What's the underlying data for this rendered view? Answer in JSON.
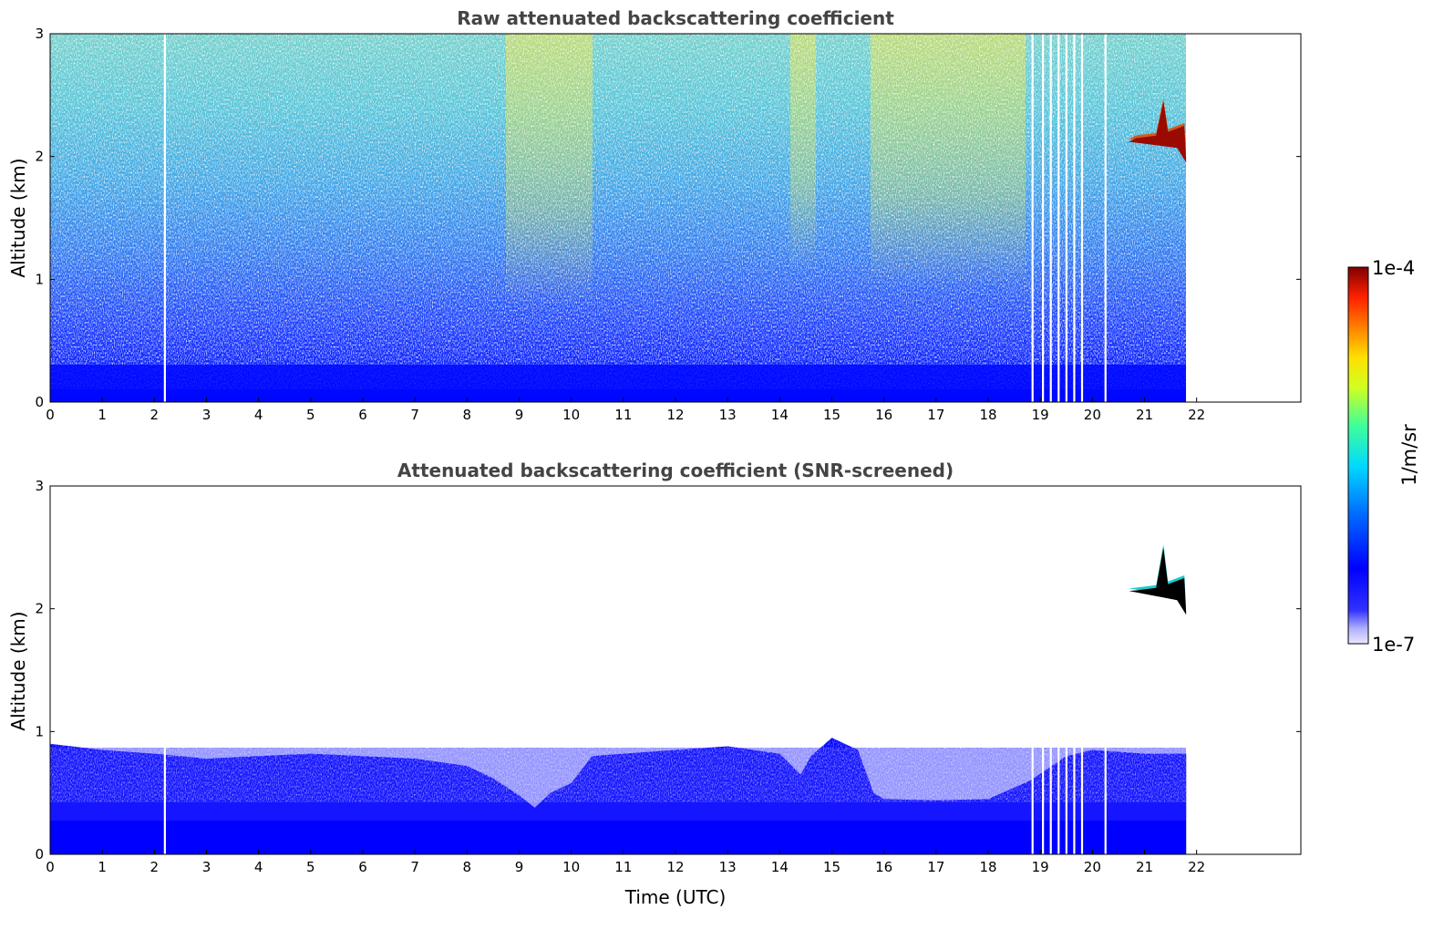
{
  "chart_data": [
    {
      "type": "heatmap",
      "title": "Raw attenuated backscattering coefficient",
      "xlabel": "",
      "ylabel": "Altitude (km)",
      "xlim": [
        0,
        24
      ],
      "ylim": [
        0,
        3
      ],
      "xticks": [
        "0",
        "1",
        "2",
        "3",
        "4",
        "5",
        "6",
        "7",
        "8",
        "9",
        "10",
        "11",
        "12",
        "13",
        "14",
        "15",
        "16",
        "17",
        "18",
        "19",
        "20",
        "21",
        "22"
      ],
      "yticks": [
        "0",
        "1",
        "2",
        "3"
      ],
      "data_extent_hours": [
        0,
        21.8
      ],
      "screened": false,
      "features": [
        {
          "name": "cloud",
          "time": [
            20.7,
            21.8
          ],
          "altitude": [
            1.95,
            2.45
          ]
        }
      ],
      "missing_columns_hours": [
        2.2,
        18.85,
        19.05,
        19.2,
        19.35,
        19.5,
        19.65,
        19.8,
        20.25
      ]
    },
    {
      "type": "heatmap",
      "title": "Attenuated backscattering coefficient (SNR-screened)",
      "xlabel": "Time (UTC)",
      "ylabel": "Altitude (km)",
      "xlim": [
        0,
        24
      ],
      "ylim": [
        0,
        3
      ],
      "xticks": [
        "0",
        "1",
        "2",
        "3",
        "4",
        "5",
        "6",
        "7",
        "8",
        "9",
        "10",
        "11",
        "12",
        "13",
        "14",
        "15",
        "16",
        "17",
        "18",
        "19",
        "20",
        "21",
        "22"
      ],
      "yticks": [
        "0",
        "1",
        "2",
        "3"
      ],
      "data_extent_hours": [
        0,
        21.8
      ],
      "screened": true,
      "boundary_layer_top_km": {
        "hours": [
          0,
          1,
          2,
          3,
          4,
          5,
          6,
          7,
          8,
          8.5,
          9,
          9.3,
          9.6,
          10,
          10.4,
          11,
          12,
          13,
          14,
          14.4,
          14.6,
          15,
          15.5,
          15.8,
          16,
          17,
          18,
          18.8,
          19.5,
          20,
          21,
          21.8
        ],
        "values": [
          0.9,
          0.85,
          0.82,
          0.78,
          0.8,
          0.82,
          0.8,
          0.78,
          0.72,
          0.62,
          0.48,
          0.38,
          0.5,
          0.58,
          0.8,
          0.82,
          0.85,
          0.88,
          0.82,
          0.65,
          0.8,
          0.95,
          0.85,
          0.5,
          0.45,
          0.44,
          0.45,
          0.6,
          0.8,
          0.85,
          0.82,
          0.82
        ]
      },
      "features": [
        {
          "name": "cloud",
          "time": [
            20.7,
            21.8
          ],
          "altitude": [
            1.95,
            2.5
          ]
        }
      ]
    }
  ],
  "colorbar": {
    "label": "1/m/sr",
    "min_label": "1e-7",
    "max_label": "1e-4",
    "scale": "log",
    "colormap": [
      "#e8e8ff",
      "#c0c0ff",
      "#8080ff",
      "#0000ff",
      "#0060ff",
      "#00b0ff",
      "#00e0e0",
      "#40ff80",
      "#c0ff00",
      "#ffff00",
      "#ffa000",
      "#ff4000",
      "#e00000",
      "#800000"
    ]
  }
}
